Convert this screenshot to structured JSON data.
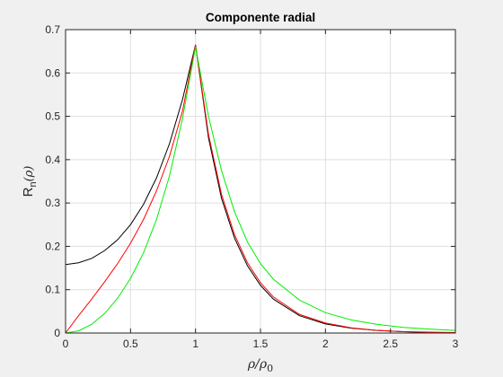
{
  "chart_data": {
    "type": "line",
    "title": "Componente radial",
    "xlabel": {
      "main": "ρ/ρ",
      "sub": "0"
    },
    "ylabel": {
      "main": "R",
      "sub": "n",
      "arg": "(ρ)"
    },
    "xlim": [
      0,
      3
    ],
    "ylim": [
      0,
      0.7
    ],
    "xticks": [
      0,
      0.5,
      1,
      1.5,
      2,
      2.5,
      3
    ],
    "xtick_labels": [
      "0",
      "0.5",
      "1",
      "1.5",
      "2",
      "2.5",
      "3"
    ],
    "yticks": [
      0,
      0.1,
      0.2,
      0.3,
      0.4,
      0.5,
      0.6,
      0.7
    ],
    "ytick_labels": [
      "0",
      "0.1",
      "0.2",
      "0.3",
      "0.4",
      "0.5",
      "0.6",
      "0.7"
    ],
    "grid": true,
    "series": [
      {
        "color": "#000000",
        "x": [
          0,
          0.1,
          0.2,
          0.3,
          0.4,
          0.5,
          0.6,
          0.7,
          0.8,
          0.9,
          1.0,
          1.1,
          1.2,
          1.3,
          1.4,
          1.5,
          1.6,
          1.8,
          2.0,
          2.2,
          2.4,
          2.6,
          2.8,
          3.0
        ],
        "y": [
          0.158,
          0.162,
          0.172,
          0.19,
          0.215,
          0.25,
          0.297,
          0.358,
          0.437,
          0.539,
          0.665,
          0.45,
          0.311,
          0.219,
          0.155,
          0.11,
          0.078,
          0.04,
          0.021,
          0.011,
          0.006,
          0.003,
          0.001,
          0.0
        ]
      },
      {
        "color": "#ff0000",
        "x": [
          0,
          0.1,
          0.2,
          0.3,
          0.4,
          0.5,
          0.6,
          0.7,
          0.8,
          0.9,
          1.0,
          1.1,
          1.2,
          1.3,
          1.4,
          1.5,
          1.6,
          1.8,
          2.0,
          2.2,
          2.4,
          2.6,
          2.8,
          3.0
        ],
        "y": [
          0.0,
          0.04,
          0.078,
          0.118,
          0.16,
          0.207,
          0.262,
          0.328,
          0.408,
          0.512,
          0.665,
          0.458,
          0.32,
          0.227,
          0.162,
          0.116,
          0.083,
          0.043,
          0.023,
          0.012,
          0.006,
          0.003,
          0.002,
          0.001
        ]
      },
      {
        "color": "#00ee00",
        "x": [
          0,
          0.1,
          0.2,
          0.3,
          0.4,
          0.5,
          0.6,
          0.7,
          0.8,
          0.9,
          1.0,
          1.1,
          1.2,
          1.3,
          1.4,
          1.5,
          1.6,
          1.8,
          2.0,
          2.2,
          2.4,
          2.6,
          2.8,
          3.0
        ],
        "y": [
          0.0,
          0.005,
          0.02,
          0.045,
          0.08,
          0.126,
          0.185,
          0.262,
          0.363,
          0.495,
          0.66,
          0.5,
          0.375,
          0.28,
          0.21,
          0.16,
          0.124,
          0.076,
          0.047,
          0.03,
          0.02,
          0.013,
          0.009,
          0.006
        ]
      }
    ]
  }
}
